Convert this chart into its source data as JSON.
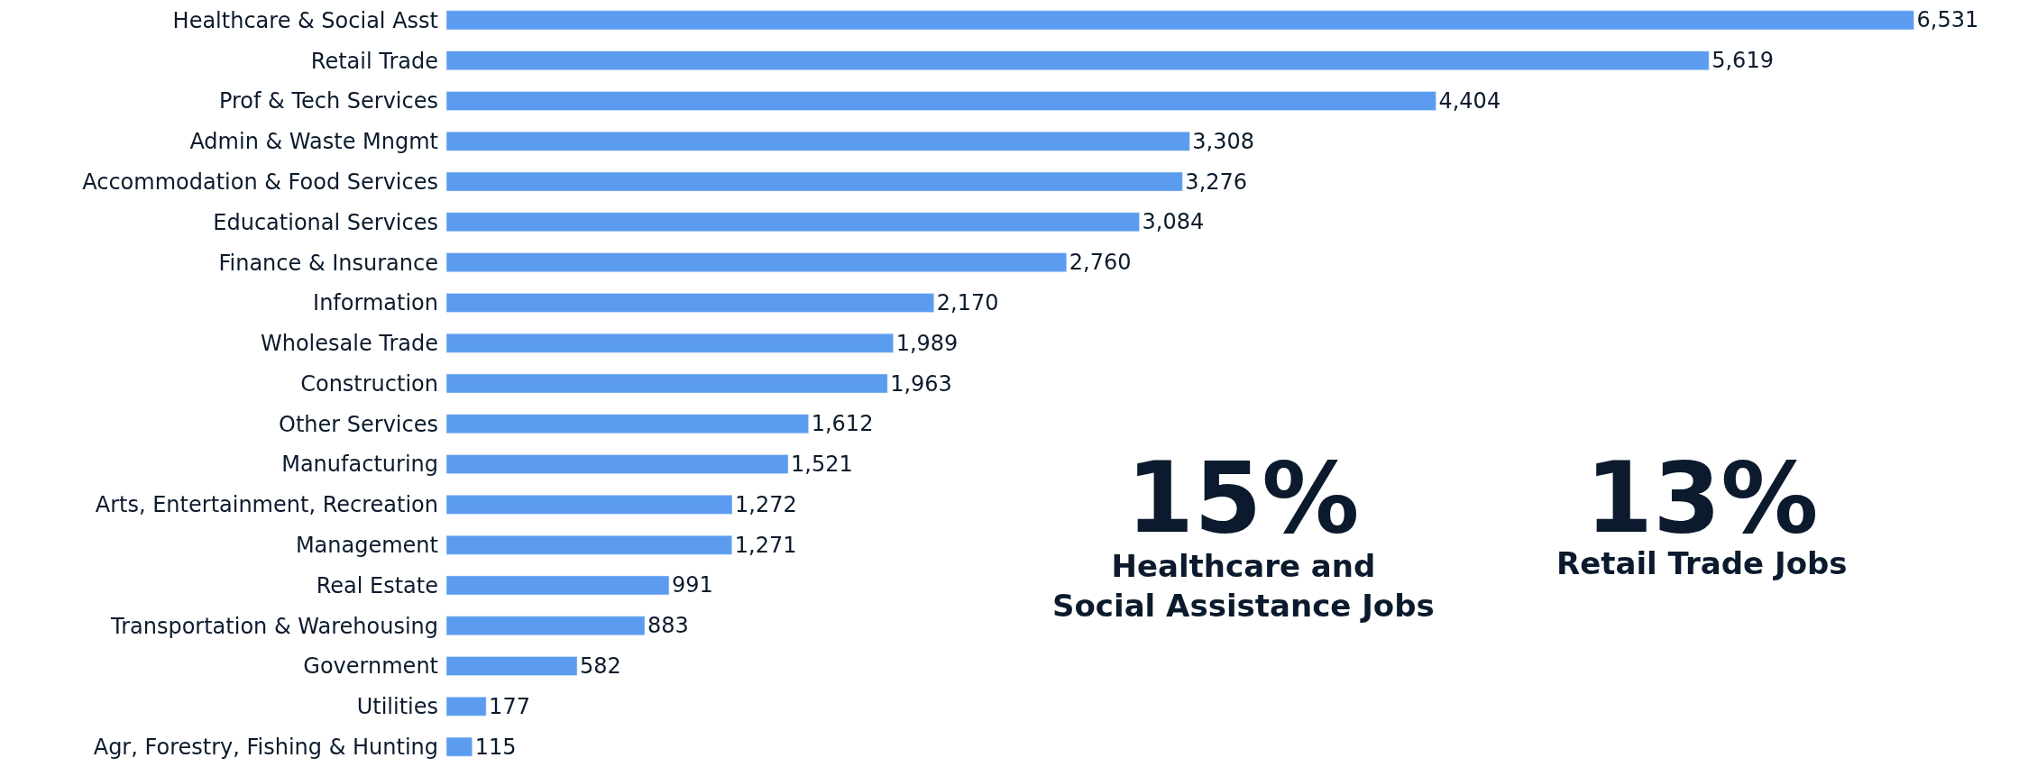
{
  "chart_data": {
    "type": "bar",
    "orientation": "horizontal",
    "color": "#5b9cf0",
    "value_labels": [
      "6,531",
      "5,619",
      "4,404",
      "3,308",
      "3,276",
      "3,084",
      "2,760",
      "2,170",
      "1,989",
      "1,963",
      "1,612",
      "1,521",
      "1,272",
      "1,271",
      "991",
      "883",
      "582",
      "177",
      "115"
    ],
    "categories": [
      "Healthcare & Social Asst",
      "Retail Trade",
      "Prof & Tech Services",
      "Admin & Waste Mngmt",
      "Accommodation & Food Services",
      "Educational Services",
      "Finance & Insurance",
      "Information",
      "Wholesale Trade",
      "Construction",
      "Other Services",
      "Manufacturing",
      "Arts, Entertainment, Recreation",
      "Management",
      "Real Estate",
      "Transportation & Warehousing",
      "Government",
      "Utilities",
      "Agr, Forestry, Fishing & Hunting"
    ],
    "values": [
      6531,
      5619,
      4404,
      3308,
      3276,
      3084,
      2760,
      2170,
      1989,
      1963,
      1612,
      1521,
      1272,
      1271,
      991,
      883,
      582,
      177,
      115
    ],
    "annotations": [
      "15%",
      "Healthcare and\nSocial Assistance Jobs",
      "13%",
      "Retail Trade Jobs"
    ]
  }
}
